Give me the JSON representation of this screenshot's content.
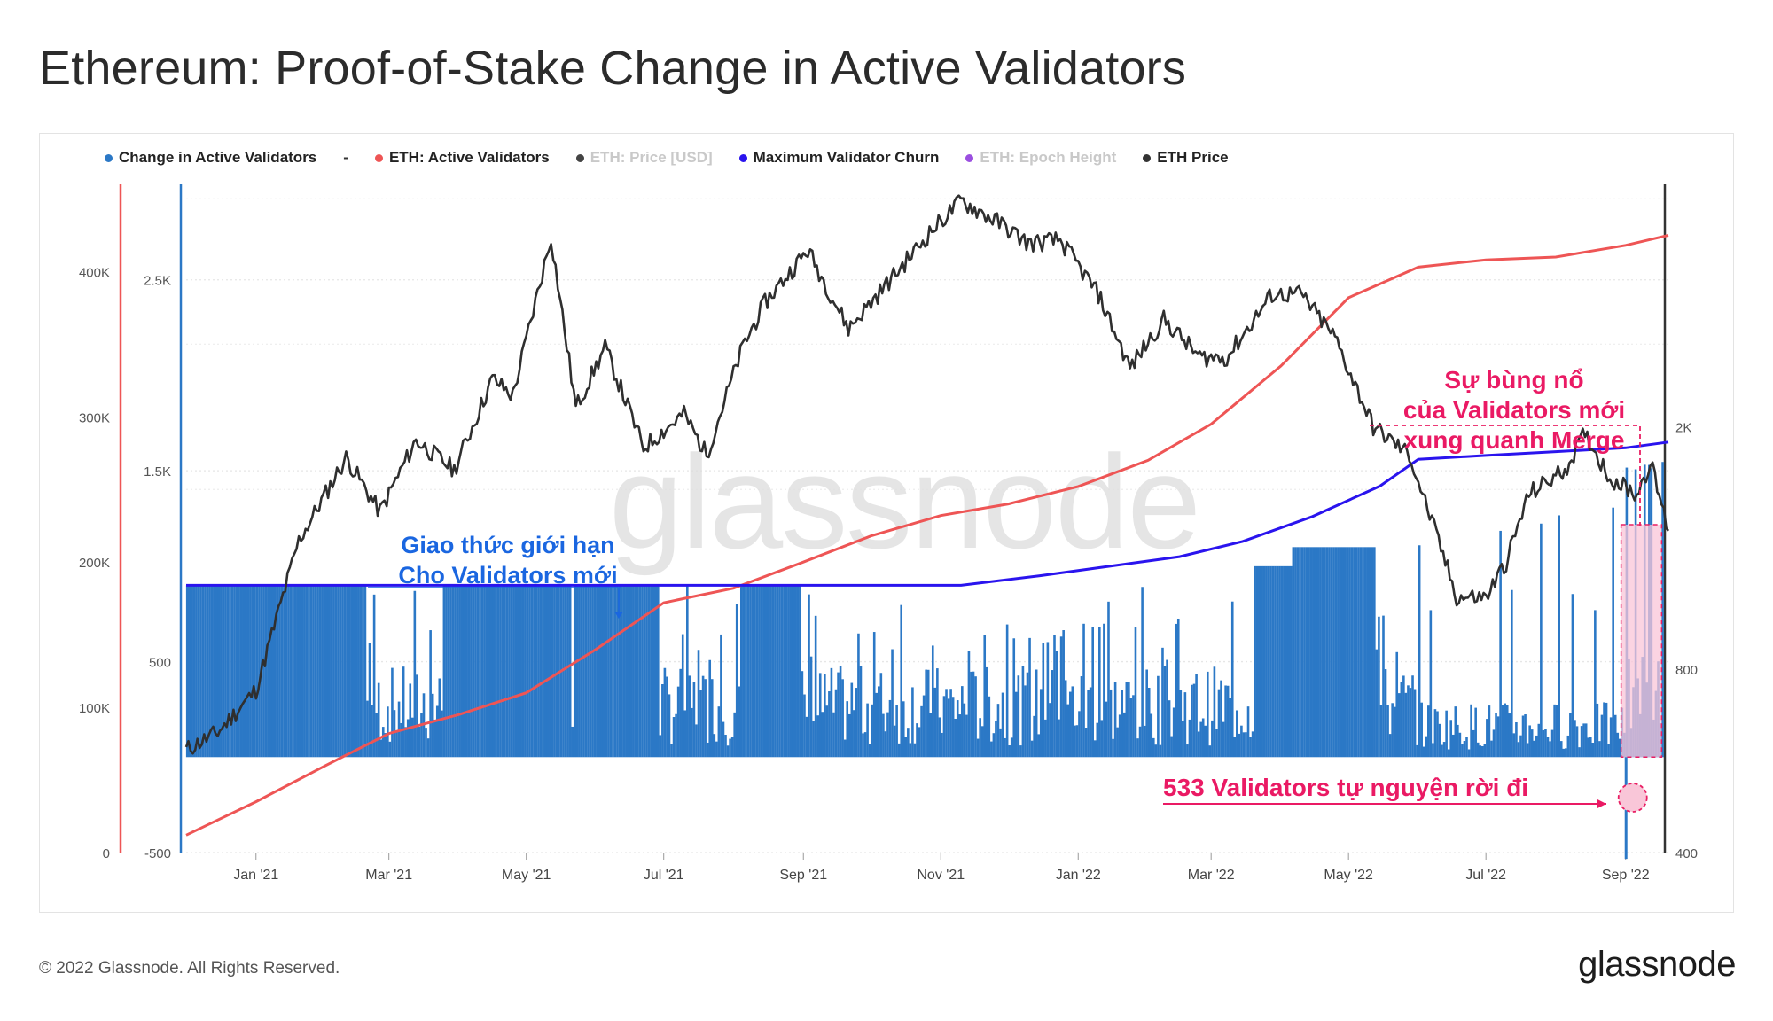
{
  "title": "Ethereum: Proof-of-Stake Change in Active Validators",
  "legend": [
    {
      "label": "Change in Active Validators",
      "color": "#2b78c6",
      "muted": false
    },
    {
      "label": "-",
      "color": "",
      "muted": false,
      "separator": true
    },
    {
      "label": "ETH: Active Validators",
      "color": "#ee5555",
      "muted": false
    },
    {
      "label": "ETH: Price [USD]",
      "color": "#444444",
      "muted": true
    },
    {
      "label": "Maximum Validator Churn",
      "color": "#2a14ee",
      "muted": false
    },
    {
      "label": "ETH: Epoch Height",
      "color": "#9b4fe0",
      "muted": true
    },
    {
      "label": "ETH Price",
      "color": "#333333",
      "muted": false
    }
  ],
  "footer": "© 2022 Glassnode. All Rights Reserved.",
  "brand": "glassnode",
  "watermark": "glassnode",
  "colors": {
    "bars": "#2b78c6",
    "active_validators": "#ee5555",
    "churn": "#2a14ee",
    "price": "#2f2f2f",
    "highlight_fill": "#f9c6d8",
    "highlight_border": "#e91e63",
    "annotation_blue": "#1a66e0",
    "annotation_pink": "#ea1a64",
    "left_axis_red": "#ee5555",
    "left_axis_blue": "#2b78c6"
  },
  "annotations": {
    "limit_line1": "Giao thức giới hạn",
    "limit_line2": "Cho Validators mới",
    "surge_line1": "Sự bùng nổ",
    "surge_line2": "của Validators mới",
    "surge_line3": "xung quanh Merge",
    "exit_text": "533 Validators tự nguyện rời đi"
  },
  "chart_data": {
    "type": "bar+line",
    "title": "Ethereum: Proof-of-Stake Change in Active Validators",
    "x_range": [
      "2020-12-01",
      "2022-09-20"
    ],
    "x_ticks": [
      "Jan '21",
      "Mar '21",
      "May '21",
      "Jul '21",
      "Sep '21",
      "Nov '21",
      "Jan '22",
      "Mar '22",
      "May '22",
      "Jul '22",
      "Sep '22"
    ],
    "axes": {
      "active_validators_axis": {
        "ticks": [
          "0",
          "100K",
          "200K",
          "300K",
          "400K"
        ],
        "range": [
          0,
          460000
        ]
      },
      "change_axis": {
        "ticks": [
          "-500",
          "500",
          "1.5K",
          "2.5K"
        ],
        "range": [
          -500,
          3000
        ]
      },
      "price_axis_log": {
        "ticks": [
          "400",
          "800",
          "2K"
        ],
        "range": [
          400,
          5000
        ]
      }
    },
    "series": [
      {
        "name": "ETH: Active Validators",
        "x": [
          "2020-12-01",
          "2021-01-01",
          "2021-02-01",
          "2021-03-01",
          "2021-04-01",
          "2021-05-01",
          "2021-06-01",
          "2021-07-01",
          "2021-08-01",
          "2021-09-01",
          "2021-10-01",
          "2021-11-01",
          "2021-12-01",
          "2022-01-01",
          "2022-02-01",
          "2022-03-01",
          "2022-04-01",
          "2022-05-01",
          "2022-06-01",
          "2022-07-01",
          "2022-08-01",
          "2022-09-01",
          "2022-09-20"
        ],
        "values": [
          12000,
          35000,
          60000,
          82000,
          95000,
          110000,
          140000,
          172000,
          182000,
          200000,
          218000,
          232000,
          240000,
          252000,
          270000,
          295000,
          335000,
          382000,
          403000,
          408000,
          410000,
          418000,
          425000
        ]
      },
      {
        "name": "Maximum Validator Churn",
        "x": [
          "2020-12-01",
          "2021-11-10",
          "2021-12-15",
          "2022-01-15",
          "2022-02-15",
          "2022-03-15",
          "2022-04-15",
          "2022-05-15",
          "2022-06-01",
          "2022-07-01",
          "2022-08-01",
          "2022-09-01",
          "2022-09-20"
        ],
        "values": [
          900,
          900,
          950,
          1000,
          1050,
          1130,
          1260,
          1420,
          1560,
          1580,
          1600,
          1620,
          1650
        ]
      },
      {
        "name": "ETH Price",
        "x": [
          "2020-12-01",
          "2020-12-15",
          "2021-01-01",
          "2021-01-20",
          "2021-02-10",
          "2021-02-25",
          "2021-03-13",
          "2021-03-30",
          "2021-04-16",
          "2021-04-25",
          "2021-05-12",
          "2021-05-23",
          "2021-06-05",
          "2021-06-22",
          "2021-07-10",
          "2021-07-20",
          "2021-08-05",
          "2021-08-15",
          "2021-09-03",
          "2021-09-21",
          "2021-10-10",
          "2021-10-28",
          "2021-11-10",
          "2021-11-28",
          "2021-12-10",
          "2021-12-24",
          "2022-01-10",
          "2022-01-24",
          "2022-02-08",
          "2022-02-24",
          "2022-03-08",
          "2022-03-28",
          "2022-04-10",
          "2022-04-25",
          "2022-05-12",
          "2022-05-28",
          "2022-06-13",
          "2022-06-18",
          "2022-07-01",
          "2022-07-10",
          "2022-07-20",
          "2022-08-05",
          "2022-08-14",
          "2022-08-25",
          "2022-09-06",
          "2022-09-12",
          "2022-09-20"
        ],
        "values": [
          590,
          630,
          740,
          1300,
          1780,
          1450,
          1900,
          1700,
          2400,
          2250,
          4100,
          2150,
          2700,
          1850,
          2100,
          1800,
          2700,
          3200,
          3900,
          2900,
          3500,
          4200,
          4700,
          4300,
          4000,
          4050,
          3300,
          2500,
          3000,
          2600,
          2600,
          3300,
          3300,
          2800,
          2000,
          1800,
          1200,
          1050,
          1050,
          1200,
          1550,
          1700,
          1950,
          1650,
          1550,
          1750,
          1350
        ]
      },
      {
        "name": "Change in Active Validators",
        "description_values": "daily bars, mostly capped at churn limit (~900) through mid 2021, intermittent spikes thereafter, burst to ~1500 around Sep 2022, one day of -533 (voluntary exits) near the Merge",
        "cap_segments": [
          {
            "from": "2020-12-01",
            "to": "2021-02-18",
            "value": 900
          },
          {
            "from": "2021-03-25",
            "to": "2021-05-20",
            "value": 900
          },
          {
            "from": "2021-05-22",
            "to": "2021-06-28",
            "value": 900
          },
          {
            "from": "2021-08-04",
            "to": "2021-08-30",
            "value": 900
          },
          {
            "from": "2022-03-20",
            "to": "2022-04-05",
            "value": 1000
          },
          {
            "from": "2022-04-05",
            "to": "2022-05-12",
            "value": 1100
          }
        ],
        "notable": [
          {
            "date": "2022-09-01",
            "value": -533
          }
        ]
      }
    ]
  }
}
